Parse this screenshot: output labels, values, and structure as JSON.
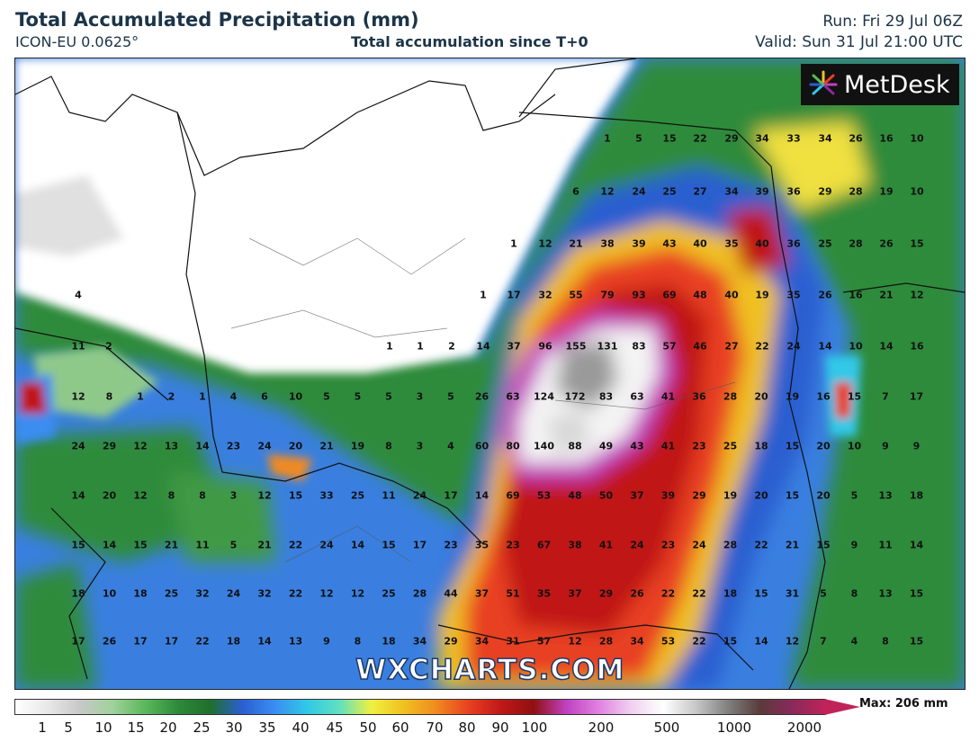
{
  "header": {
    "title": "Total Accumulated Precipitation (mm)",
    "model": "ICON-EU 0.0625°",
    "subtitle": "Total accumulation since T+0",
    "run": "Run: Fri 29 Jul 06Z",
    "valid": "Valid: Sun 31 Jul 21:00 UTC"
  },
  "brand": {
    "logo_text": "MetDesk",
    "watermark": "WXCHARTS.COM"
  },
  "legend": {
    "max_label": "Max: 206 mm",
    "ticks": [
      "1",
      "5",
      "10",
      "15",
      "20",
      "25",
      "30",
      "35",
      "40",
      "45",
      "50",
      "60",
      "70",
      "80",
      "90",
      "100",
      "200",
      "500",
      "1000",
      "2000"
    ],
    "colors": [
      "#ffffff",
      "#e8e8e8",
      "#c8c8c8",
      "#9fd29a",
      "#5cb85c",
      "#2e8b3a",
      "#1f6f2b",
      "#2a5fd0",
      "#3a8df0",
      "#30c8e8",
      "#5fe0c0",
      "#f0f040",
      "#f0c020",
      "#f08a20",
      "#e84020",
      "#c01818",
      "#901010",
      "#c040c0",
      "#e080e0",
      "#f0d0f0",
      "#ffffff",
      "#c8c8c8",
      "#808080",
      "#5a3a3a",
      "#8a2a5a",
      "#c0235a"
    ]
  },
  "map_values": [
    [
      "1",
      "5",
      "15",
      "22",
      "29",
      "34",
      "33",
      "34",
      "26",
      "16",
      "10"
    ],
    [
      "6",
      "12",
      "24",
      "25",
      "27",
      "34",
      "39",
      "36",
      "29",
      "28",
      "19",
      "10"
    ],
    [
      "1",
      "12",
      "21",
      "38",
      "39",
      "43",
      "40",
      "35",
      "40",
      "36",
      "25",
      "28",
      "26",
      "15"
    ],
    [
      "4",
      "1",
      "17",
      "32",
      "55",
      "79",
      "93",
      "69",
      "48",
      "40",
      "19",
      "35",
      "26",
      "16",
      "21",
      "12"
    ],
    [
      "11",
      "2",
      "1",
      "1",
      "2",
      "14",
      "37",
      "96",
      "155",
      "131",
      "83",
      "57",
      "46",
      "27",
      "22",
      "24",
      "14",
      "10",
      "14",
      "16"
    ],
    [
      "12",
      "8",
      "1",
      "2",
      "1",
      "4",
      "6",
      "10",
      "5",
      "5",
      "5",
      "3",
      "5",
      "26",
      "63",
      "124",
      "172",
      "83",
      "63",
      "41",
      "36",
      "28",
      "20",
      "19",
      "16",
      "15",
      "7",
      "17"
    ],
    [
      "24",
      "29",
      "12",
      "13",
      "14",
      "23",
      "24",
      "20",
      "21",
      "19",
      "8",
      "3",
      "4",
      "60",
      "80",
      "140",
      "88",
      "49",
      "43",
      "41",
      "23",
      "25",
      "18",
      "15",
      "20",
      "10",
      "9",
      "9"
    ],
    [
      "14",
      "20",
      "12",
      "8",
      "8",
      "3",
      "12",
      "15",
      "33",
      "25",
      "11",
      "24",
      "17",
      "14",
      "69",
      "53",
      "48",
      "50",
      "37",
      "39",
      "29",
      "19",
      "20",
      "15",
      "20",
      "5",
      "13",
      "18"
    ],
    [
      "15",
      "14",
      "15",
      "21",
      "11",
      "5",
      "21",
      "22",
      "24",
      "14",
      "15",
      "17",
      "23",
      "35",
      "23",
      "67",
      "38",
      "41",
      "24",
      "23",
      "24",
      "28",
      "22",
      "21",
      "15",
      "9",
      "11",
      "14"
    ],
    [
      "18",
      "10",
      "18",
      "25",
      "32",
      "24",
      "32",
      "22",
      "12",
      "12",
      "25",
      "28",
      "44",
      "37",
      "51",
      "35",
      "37",
      "29",
      "26",
      "22",
      "22",
      "18",
      "15",
      "31",
      "5",
      "8",
      "13",
      "15"
    ],
    [
      "17",
      "26",
      "17",
      "17",
      "22",
      "18",
      "14",
      "13",
      "9",
      "8",
      "18",
      "34",
      "29",
      "34",
      "31",
      "57",
      "12",
      "28",
      "34",
      "53",
      "22",
      "15",
      "14",
      "12",
      "7",
      "4",
      "8",
      "15"
    ]
  ]
}
